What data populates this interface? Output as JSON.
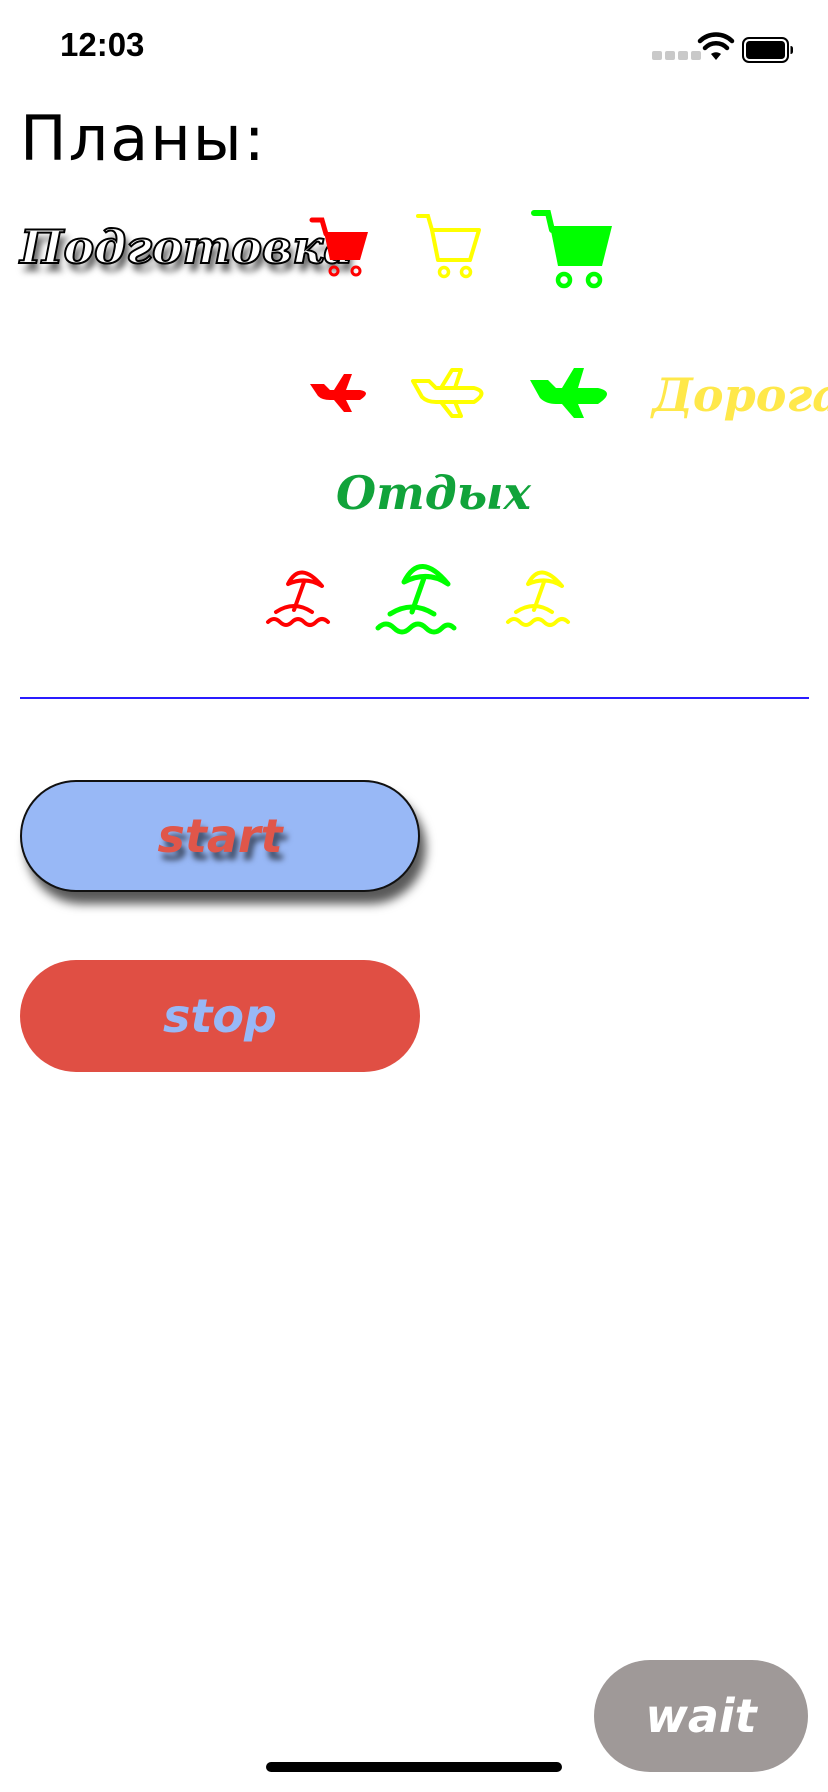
{
  "status_bar": {
    "time": "12:03"
  },
  "title": "Планы:",
  "stages": {
    "preparation": {
      "label": "Подготовка",
      "icon": "shopping-cart-icon",
      "states": [
        "red",
        "yellow",
        "green"
      ]
    },
    "road": {
      "label": "Дорога",
      "icon": "airplane-icon",
      "states": [
        "red",
        "yellow",
        "green"
      ]
    },
    "rest": {
      "label": "Отдых",
      "icon": "beach-umbrella-icon",
      "states": [
        "red",
        "green",
        "yellow"
      ]
    }
  },
  "buttons": {
    "start": "start",
    "stop": "stop",
    "wait": "wait"
  },
  "colors": {
    "red": "#ff0000",
    "yellow": "#ffff00",
    "green": "#00ff00",
    "road_label": "#ffe84a",
    "rest_label": "#11a33a",
    "divider": "#2a1cff",
    "start_bg": "#98b8f6",
    "start_text": "#e0564a",
    "stop_bg": "#e04f44",
    "stop_text": "#98b8f6",
    "wait_bg": "#9f9998",
    "wait_text": "#ffffff"
  }
}
